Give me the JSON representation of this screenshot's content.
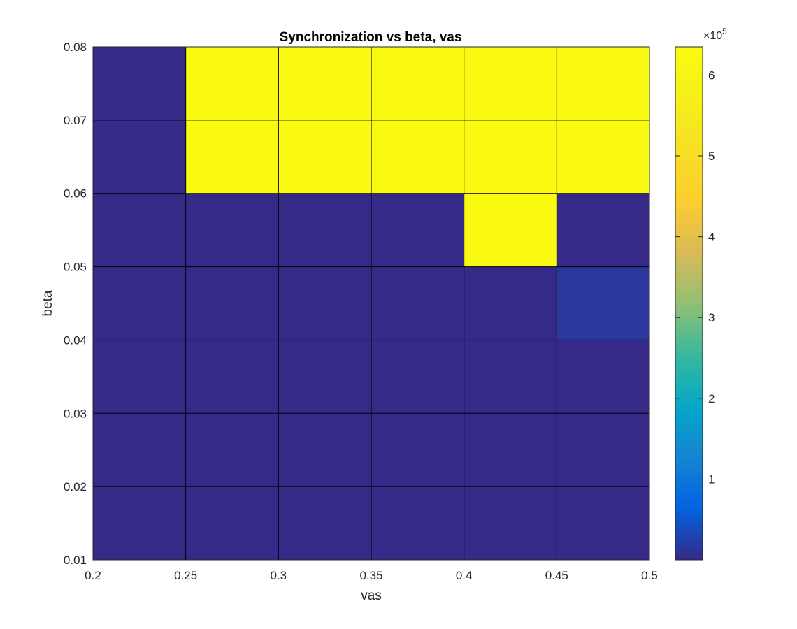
{
  "chart_data": {
    "type": "heatmap",
    "title": "Synchronization vs beta, vas",
    "xlabel": "vas",
    "ylabel": "beta",
    "x_edges": [
      0.2,
      0.25,
      0.3,
      0.35,
      0.4,
      0.45,
      0.5
    ],
    "y_edges": [
      0.01,
      0.02,
      0.03,
      0.04,
      0.05,
      0.06,
      0.07,
      0.08
    ],
    "xlim": [
      0.2,
      0.5
    ],
    "ylim": [
      0.01,
      0.08
    ],
    "x_ticks": [
      "0.2",
      "0.25",
      "0.3",
      "0.35",
      "0.4",
      "0.45",
      "0.5"
    ],
    "y_ticks": [
      "0.01",
      "0.02",
      "0.03",
      "0.04",
      "0.05",
      "0.06",
      "0.07",
      "0.08"
    ],
    "values": [
      [
        0,
        0,
        0,
        0,
        0,
        0
      ],
      [
        0,
        0,
        0,
        0,
        0,
        0
      ],
      [
        0,
        0,
        0,
        0,
        0,
        0
      ],
      [
        0,
        0,
        0,
        0,
        0,
        14000
      ],
      [
        0,
        0,
        0,
        0,
        630000,
        0
      ],
      [
        0,
        630000,
        630000,
        630000,
        630000,
        630000
      ],
      [
        0,
        630000,
        630000,
        630000,
        630000,
        630000
      ]
    ],
    "colorbar": {
      "range": [
        0,
        635000
      ],
      "ticks": [
        100000,
        200000,
        300000,
        400000,
        500000,
        600000
      ],
      "tick_labels": [
        "1",
        "2",
        "3",
        "4",
        "5",
        "6"
      ],
      "exponent_base": "×10",
      "exponent": "5",
      "colormap": "parula"
    },
    "grid": true
  }
}
